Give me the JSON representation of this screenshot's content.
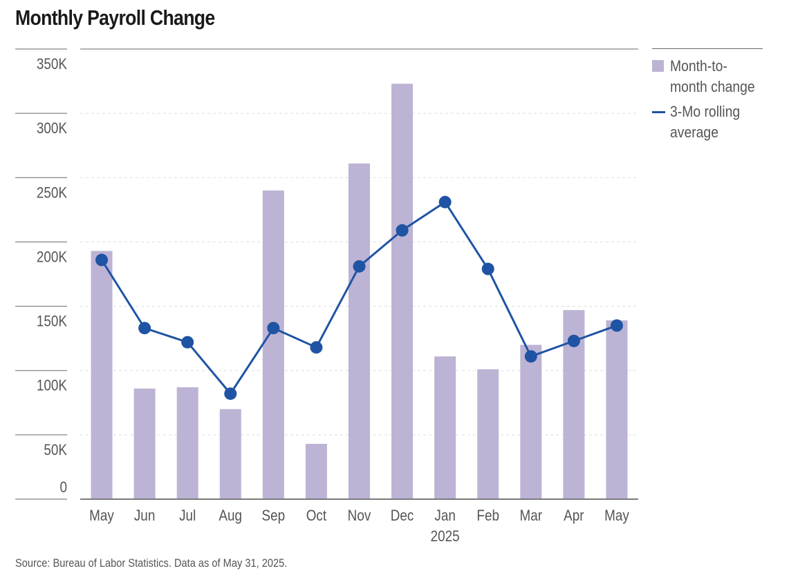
{
  "title": "Monthly Payroll Change",
  "source": "Source: Bureau of Labor Statistics. Data as of May 31, 2025.",
  "colors": {
    "bar": "#bdb3d4",
    "line": "#1f53a4",
    "grid": "#dddddd",
    "axis": "#666666"
  },
  "chart_data": {
    "type": "bar",
    "title": "Monthly Payroll Change",
    "xlabel": "",
    "ylabel": "",
    "ylim": [
      0,
      350000
    ],
    "yticks": [
      0,
      50000,
      100000,
      150000,
      200000,
      250000,
      300000,
      350000
    ],
    "ytick_labels": [
      "0",
      "50K",
      "100K",
      "150K",
      "200K",
      "250K",
      "300K",
      "350K"
    ],
    "categories": [
      "May",
      "Jun",
      "Jul",
      "Aug",
      "Sep",
      "Oct",
      "Nov",
      "Dec",
      "Jan",
      "Feb",
      "Mar",
      "Apr",
      "May"
    ],
    "category_sublabels": [
      "",
      "",
      "",
      "",
      "",
      "",
      "",
      "",
      "2025",
      "",
      "",
      "",
      ""
    ],
    "grid": true,
    "legend_position": "right",
    "series": [
      {
        "name": "Month-to-month change",
        "type": "bar",
        "values": [
          193000,
          86000,
          87000,
          70000,
          240000,
          43000,
          261000,
          323000,
          111000,
          101000,
          120000,
          147000,
          139000
        ]
      },
      {
        "name": "3-Mo rolling average",
        "type": "line",
        "values": [
          186000,
          133000,
          122000,
          82000,
          133000,
          118000,
          181000,
          209000,
          231000,
          179000,
          111000,
          123000,
          135000
        ]
      }
    ]
  },
  "legend": [
    {
      "label_line1": "Month-to-",
      "label_line2": "month change"
    },
    {
      "label_line1": "3-Mo rolling",
      "label_line2": "average"
    }
  ]
}
